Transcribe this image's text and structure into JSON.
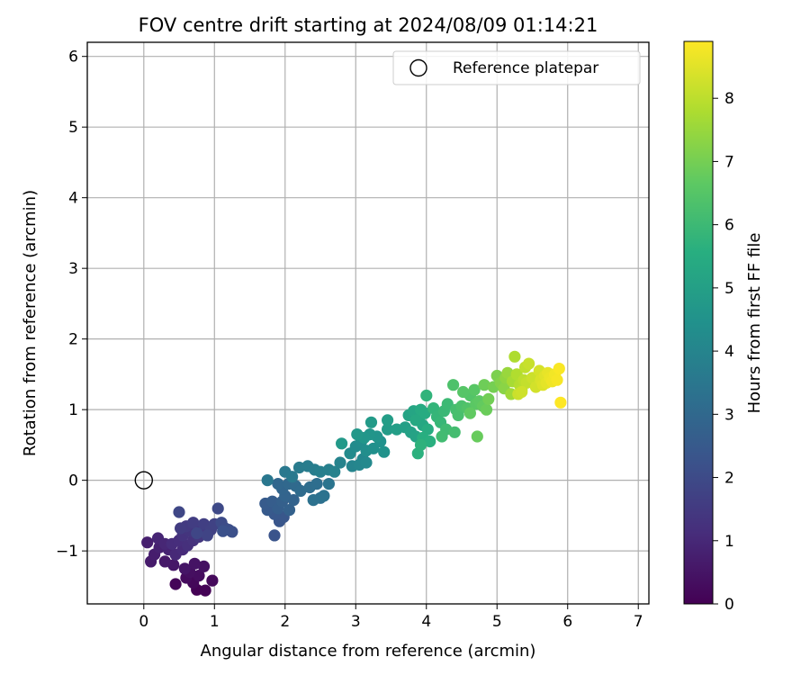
{
  "chart_data": {
    "type": "scatter",
    "title": "FOV centre drift starting at 2024/08/09 01:14:21",
    "xlabel": "Angular distance from reference (arcmin)",
    "ylabel": "Rotation from reference (arcmin)",
    "colorbar_label": "Hours from first FF file",
    "xlim": [
      -0.8,
      7.15
    ],
    "ylim": [
      -1.75,
      6.2
    ],
    "xticks": [
      0,
      1,
      2,
      3,
      4,
      5,
      6,
      7
    ],
    "yticks": [
      -1,
      0,
      1,
      2,
      3,
      4,
      5,
      6
    ],
    "colorbar_range": [
      0,
      8.9
    ],
    "colorbar_ticks": [
      0,
      1,
      2,
      3,
      4,
      5,
      6,
      7,
      8
    ],
    "colormap": "viridis",
    "grid": true,
    "legend": {
      "position": "top-right",
      "entries": [
        {
          "label": "Reference platepar",
          "marker": "open-circle"
        }
      ]
    },
    "reference_point": {
      "x": 0.0,
      "y": 0.0
    },
    "series": [
      {
        "columns": [
          "x",
          "y",
          "hours"
        ],
        "points": [
          [
            0.75,
            -1.55,
            0.0
          ],
          [
            0.87,
            -1.56,
            0.05
          ],
          [
            0.45,
            -1.47,
            0.1
          ],
          [
            0.7,
            -1.45,
            0.15
          ],
          [
            0.97,
            -1.42,
            0.2
          ],
          [
            0.6,
            -1.38,
            0.25
          ],
          [
            0.78,
            -1.35,
            0.3
          ],
          [
            0.65,
            -1.3,
            0.35
          ],
          [
            0.85,
            -1.22,
            0.4
          ],
          [
            0.72,
            -1.18,
            0.45
          ],
          [
            0.58,
            -1.25,
            0.5
          ],
          [
            0.42,
            -1.2,
            0.55
          ],
          [
            0.3,
            -1.15,
            0.6
          ],
          [
            0.1,
            -1.15,
            0.65
          ],
          [
            0.15,
            -1.05,
            0.7
          ],
          [
            0.05,
            -0.88,
            0.75
          ],
          [
            0.22,
            -0.95,
            0.8
          ],
          [
            0.35,
            -0.98,
            0.85
          ],
          [
            0.2,
            -0.82,
            0.9
          ],
          [
            0.3,
            -0.9,
            0.95
          ],
          [
            0.45,
            -1.05,
            1.0
          ],
          [
            0.55,
            -0.98,
            1.05
          ],
          [
            0.4,
            -0.9,
            1.1
          ],
          [
            0.5,
            -0.85,
            1.15
          ],
          [
            0.62,
            -0.92,
            1.2
          ],
          [
            0.7,
            -0.85,
            1.25
          ],
          [
            0.55,
            -0.78,
            1.3
          ],
          [
            0.65,
            -0.72,
            1.35
          ],
          [
            0.78,
            -0.8,
            1.4
          ],
          [
            0.82,
            -0.7,
            1.45
          ],
          [
            0.6,
            -0.65,
            1.5
          ],
          [
            0.52,
            -0.68,
            1.55
          ],
          [
            0.7,
            -0.6,
            1.6
          ],
          [
            0.85,
            -0.62,
            1.65
          ],
          [
            0.95,
            -0.7,
            1.7
          ],
          [
            1.0,
            -0.62,
            1.75
          ],
          [
            0.9,
            -0.78,
            1.8
          ],
          [
            0.75,
            -0.75,
            1.85
          ],
          [
            0.5,
            -0.45,
            1.9
          ],
          [
            1.05,
            -0.4,
            1.95
          ],
          [
            1.1,
            -0.6,
            2.0
          ],
          [
            1.15,
            -0.68,
            2.05
          ],
          [
            1.2,
            -0.7,
            2.1
          ],
          [
            1.25,
            -0.73,
            2.15
          ],
          [
            1.12,
            -0.72,
            2.2
          ],
          [
            1.85,
            -0.78,
            2.3
          ],
          [
            1.92,
            -0.58,
            2.35
          ],
          [
            1.98,
            -0.52,
            2.4
          ],
          [
            1.85,
            -0.48,
            2.45
          ],
          [
            1.75,
            -0.42,
            2.5
          ],
          [
            1.72,
            -0.33,
            2.55
          ],
          [
            1.82,
            -0.3,
            2.6
          ],
          [
            1.9,
            -0.4,
            2.65
          ],
          [
            1.96,
            -0.3,
            2.7
          ],
          [
            2.06,
            -0.42,
            2.75
          ],
          [
            2.12,
            -0.28,
            2.8
          ],
          [
            2.0,
            -0.22,
            2.85
          ],
          [
            1.96,
            -0.12,
            2.9
          ],
          [
            1.9,
            -0.05,
            2.95
          ],
          [
            2.05,
            -0.05,
            3.0
          ],
          [
            2.15,
            -0.08,
            3.05
          ],
          [
            2.22,
            -0.15,
            3.1
          ],
          [
            2.35,
            -0.1,
            3.15
          ],
          [
            2.45,
            -0.05,
            3.2
          ],
          [
            2.5,
            -0.25,
            3.25
          ],
          [
            2.4,
            -0.28,
            3.3
          ],
          [
            2.55,
            -0.22,
            3.35
          ],
          [
            2.62,
            -0.05,
            3.4
          ],
          [
            1.75,
            0.0,
            3.5
          ],
          [
            2.0,
            0.12,
            3.55
          ],
          [
            2.1,
            0.05,
            3.6
          ],
          [
            2.2,
            0.18,
            3.65
          ],
          [
            2.32,
            0.2,
            3.7
          ],
          [
            2.42,
            0.15,
            3.75
          ],
          [
            2.5,
            0.12,
            3.8
          ],
          [
            2.62,
            0.15,
            3.85
          ],
          [
            2.7,
            0.12,
            3.9
          ],
          [
            2.78,
            0.25,
            3.95
          ],
          [
            2.95,
            0.2,
            4.0
          ],
          [
            3.05,
            0.22,
            4.05
          ],
          [
            3.1,
            0.3,
            4.1
          ],
          [
            3.15,
            0.25,
            4.15
          ],
          [
            2.92,
            0.38,
            4.2
          ],
          [
            3.0,
            0.48,
            4.25
          ],
          [
            3.08,
            0.55,
            4.3
          ],
          [
            3.15,
            0.42,
            4.35
          ],
          [
            3.25,
            0.45,
            4.4
          ],
          [
            3.35,
            0.55,
            4.45
          ],
          [
            3.4,
            0.4,
            4.5
          ],
          [
            3.3,
            0.62,
            4.55
          ],
          [
            3.2,
            0.65,
            4.6
          ],
          [
            3.12,
            0.6,
            4.65
          ],
          [
            3.02,
            0.65,
            4.7
          ],
          [
            2.8,
            0.52,
            4.75
          ],
          [
            3.22,
            0.82,
            4.8
          ],
          [
            3.45,
            0.72,
            4.85
          ],
          [
            3.45,
            0.85,
            4.9
          ],
          [
            3.58,
            0.72,
            4.95
          ],
          [
            3.7,
            0.75,
            5.0
          ],
          [
            3.78,
            0.68,
            5.05
          ],
          [
            3.85,
            0.62,
            5.1
          ],
          [
            3.75,
            0.92,
            5.15
          ],
          [
            3.82,
            0.98,
            5.2
          ],
          [
            3.9,
            0.88,
            5.25
          ],
          [
            3.95,
            0.78,
            5.3
          ],
          [
            3.85,
            0.85,
            5.35
          ],
          [
            3.92,
            1.0,
            5.4
          ],
          [
            3.98,
            0.95,
            5.45
          ],
          [
            4.02,
            0.72,
            5.5
          ],
          [
            3.95,
            0.6,
            5.55
          ],
          [
            4.05,
            0.55,
            5.6
          ],
          [
            3.88,
            0.38,
            5.65
          ],
          [
            3.92,
            0.5,
            5.7
          ],
          [
            4.0,
            1.2,
            5.75
          ],
          [
            4.1,
            1.02,
            5.8
          ],
          [
            4.15,
            0.9,
            5.85
          ],
          [
            4.2,
            0.82,
            5.9
          ],
          [
            4.25,
            0.98,
            5.95
          ],
          [
            4.3,
            1.08,
            6.0
          ],
          [
            4.28,
            0.72,
            6.05
          ],
          [
            4.22,
            0.62,
            6.1
          ],
          [
            4.4,
            0.68,
            6.15
          ],
          [
            4.42,
            1.0,
            6.2
          ],
          [
            4.45,
            0.92,
            6.25
          ],
          [
            4.5,
            1.05,
            6.3
          ],
          [
            4.38,
            1.35,
            6.35
          ],
          [
            4.58,
            1.02,
            6.4
          ],
          [
            4.62,
            1.2,
            6.45
          ],
          [
            4.52,
            1.25,
            6.5
          ],
          [
            4.68,
            1.28,
            6.55
          ],
          [
            4.7,
            1.08,
            6.6
          ],
          [
            4.75,
            1.12,
            6.65
          ],
          [
            4.62,
            0.95,
            6.7
          ],
          [
            4.8,
            1.05,
            6.75
          ],
          [
            4.72,
            0.62,
            6.8
          ],
          [
            4.85,
            1.0,
            6.85
          ],
          [
            4.82,
            1.35,
            6.9
          ],
          [
            4.88,
            1.15,
            6.95
          ],
          [
            4.95,
            1.32,
            7.0
          ],
          [
            5.0,
            1.48,
            7.1
          ],
          [
            5.05,
            1.38,
            7.2
          ],
          [
            5.1,
            1.3,
            7.3
          ],
          [
            5.12,
            1.45,
            7.4
          ],
          [
            5.15,
            1.52,
            7.5
          ],
          [
            5.2,
            1.22,
            7.6
          ],
          [
            5.22,
            1.4,
            7.7
          ],
          [
            5.25,
            1.75,
            7.8
          ],
          [
            5.28,
            1.5,
            7.85
          ],
          [
            5.32,
            1.35,
            7.9
          ],
          [
            5.35,
            1.28,
            7.95
          ],
          [
            5.38,
            1.42,
            8.0
          ],
          [
            5.4,
            1.6,
            8.05
          ],
          [
            5.42,
            1.38,
            8.1
          ],
          [
            5.45,
            1.65,
            8.15
          ],
          [
            5.5,
            1.45,
            8.2
          ],
          [
            5.55,
            1.32,
            8.3
          ],
          [
            5.6,
            1.55,
            8.35
          ],
          [
            5.62,
            1.42,
            8.4
          ],
          [
            5.65,
            1.35,
            8.45
          ],
          [
            5.68,
            1.48,
            8.5
          ],
          [
            5.7,
            1.38,
            8.55
          ],
          [
            5.72,
            1.52,
            8.6
          ],
          [
            5.75,
            1.45,
            8.65
          ],
          [
            5.78,
            1.4,
            8.7
          ],
          [
            5.82,
            1.5,
            8.75
          ],
          [
            5.85,
            1.42,
            8.8
          ],
          [
            5.88,
            1.58,
            8.85
          ],
          [
            5.9,
            1.1,
            8.9
          ],
          [
            5.3,
            1.22,
            8.2
          ],
          [
            5.35,
            1.25,
            8.25
          ]
        ]
      }
    ]
  }
}
